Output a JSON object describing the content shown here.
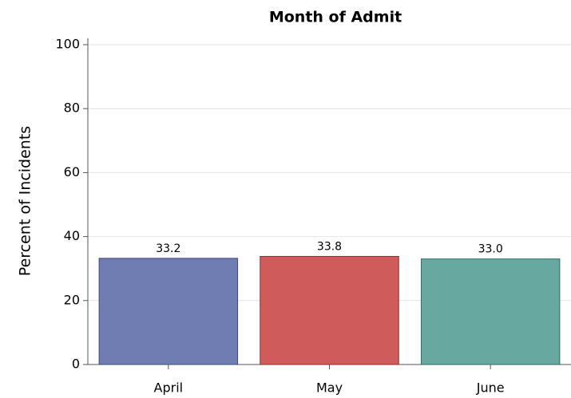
{
  "chart_data": {
    "type": "bar",
    "title": "Month of Admit",
    "y_label": "Percent of Incidents",
    "categories": [
      "April",
      "May",
      "June"
    ],
    "values": [
      33.2,
      33.8,
      33.0
    ],
    "value_labels": [
      "33.2",
      "33.8",
      "33.0"
    ],
    "colors": [
      "#6f7db3",
      "#d05b5b",
      "#67a8a0"
    ],
    "edge_colors": [
      "#3d4a80",
      "#8c2e2e",
      "#2f6b63"
    ],
    "ylim": [
      0,
      102
    ],
    "yticks": [
      0,
      20,
      40,
      60,
      80,
      100
    ],
    "grid": true
  }
}
